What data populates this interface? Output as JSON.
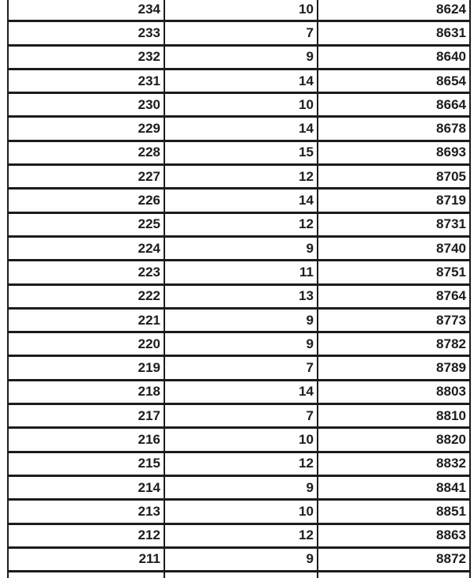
{
  "colors": {
    "background": "#ffffff",
    "cell_background": "#fefefe",
    "border": "#1c1c1c",
    "text": "#1d1d1d"
  },
  "table": {
    "description": "three-column numeric grid, no visible headers, all values right-aligned bold",
    "rows": [
      [
        "234",
        "10",
        "8624"
      ],
      [
        "233",
        "7",
        "8631"
      ],
      [
        "232",
        "9",
        "8640"
      ],
      [
        "231",
        "14",
        "8654"
      ],
      [
        "230",
        "10",
        "8664"
      ],
      [
        "229",
        "14",
        "8678"
      ],
      [
        "228",
        "15",
        "8693"
      ],
      [
        "227",
        "12",
        "8705"
      ],
      [
        "226",
        "14",
        "8719"
      ],
      [
        "225",
        "12",
        "8731"
      ],
      [
        "224",
        "9",
        "8740"
      ],
      [
        "223",
        "11",
        "8751"
      ],
      [
        "222",
        "13",
        "8764"
      ],
      [
        "221",
        "9",
        "8773"
      ],
      [
        "220",
        "9",
        "8782"
      ],
      [
        "219",
        "7",
        "8789"
      ],
      [
        "218",
        "14",
        "8803"
      ],
      [
        "217",
        "7",
        "8810"
      ],
      [
        "216",
        "10",
        "8820"
      ],
      [
        "215",
        "12",
        "8832"
      ],
      [
        "214",
        "9",
        "8841"
      ],
      [
        "213",
        "10",
        "8851"
      ],
      [
        "212",
        "12",
        "8863"
      ],
      [
        "211",
        "9",
        "8872"
      ],
      [
        "",
        "",
        ""
      ]
    ]
  }
}
